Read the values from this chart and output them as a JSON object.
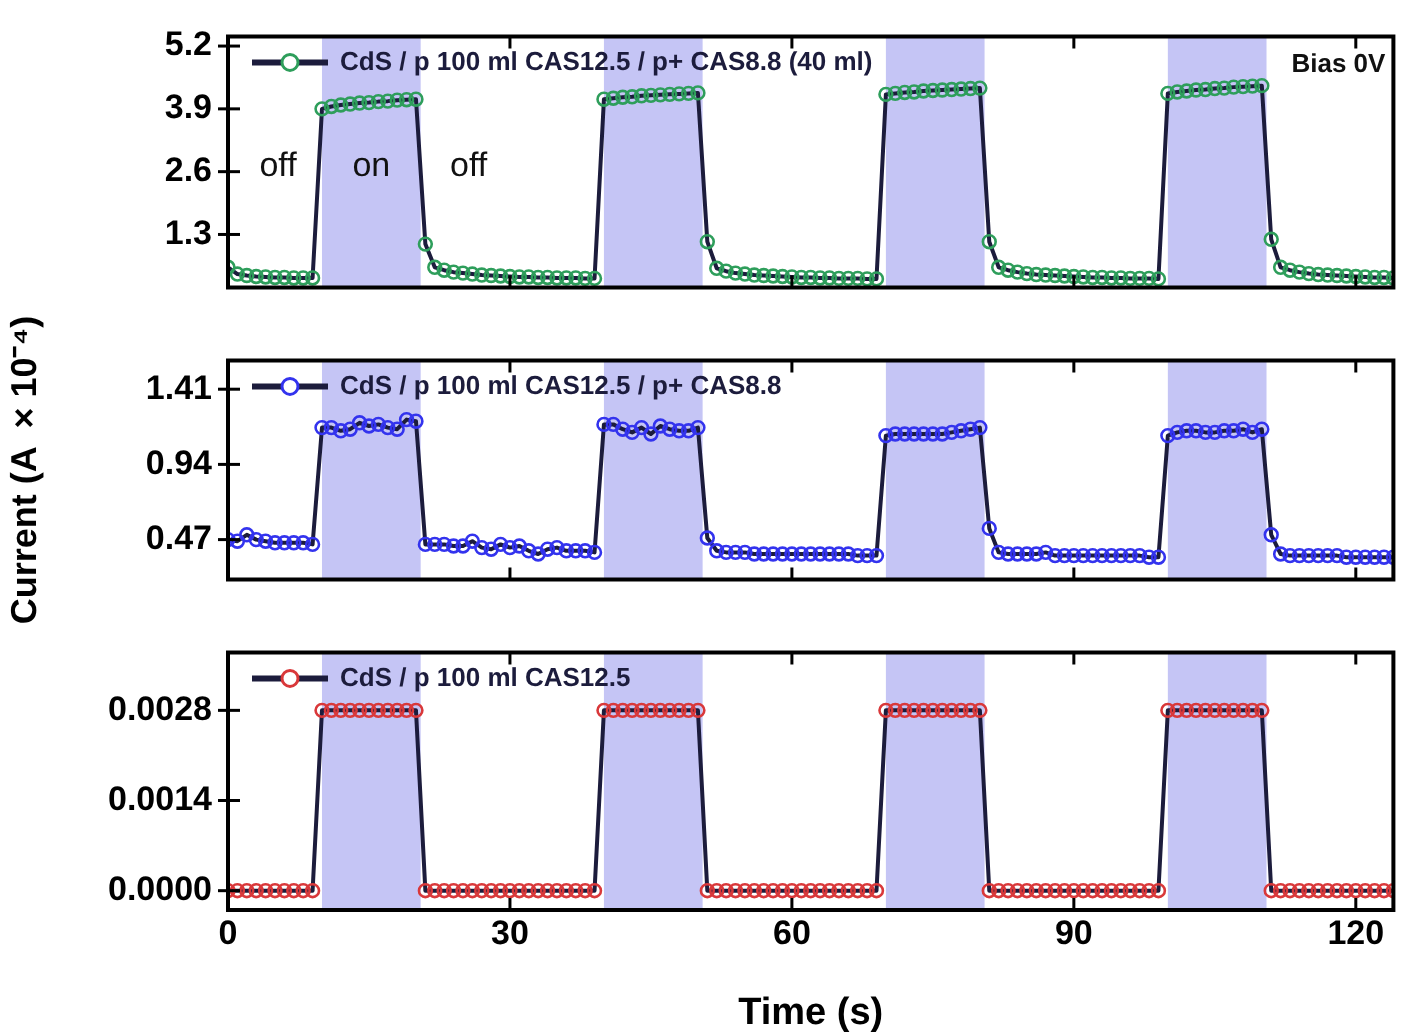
{
  "chart_data": [
    {
      "type": "line",
      "marker": "circle",
      "line_style": "solid",
      "grid": false,
      "legend": "top left",
      "tick_labels": "y",
      "xlim": [
        0,
        124
      ],
      "xticks": [
        0,
        30,
        60,
        90,
        120
      ],
      "ylim": [
        0.2,
        5.4
      ],
      "yticks": [
        1.3,
        2.6,
        3.9,
        5.2
      ],
      "bands": [
        {
          "axis": "x",
          "from": 10,
          "to": 20.5,
          "color": "#c5c5f5"
        },
        {
          "axis": "x",
          "from": 40,
          "to": 50.5,
          "color": "#c5c5f5"
        },
        {
          "axis": "x",
          "from": 70,
          "to": 80.5,
          "color": "#c5c5f5"
        },
        {
          "axis": "x",
          "from": 100,
          "to": 110.5,
          "color": "#c5c5f5"
        }
      ],
      "annotations": [
        "off",
        "on",
        "off",
        "Bias 0V"
      ],
      "x": [
        0,
        1,
        2,
        3,
        4,
        5,
        6,
        7,
        8,
        9,
        10,
        11,
        12,
        13,
        14,
        15,
        16,
        17,
        18,
        19,
        20,
        21,
        22,
        23,
        24,
        25,
        26,
        27,
        28,
        29,
        30,
        31,
        32,
        33,
        34,
        35,
        36,
        37,
        38,
        39,
        40,
        41,
        42,
        43,
        44,
        45,
        46,
        47,
        48,
        49,
        50,
        51,
        52,
        53,
        54,
        55,
        56,
        57,
        58,
        59,
        60,
        61,
        62,
        63,
        64,
        65,
        66,
        67,
        68,
        69,
        70,
        71,
        72,
        73,
        74,
        75,
        76,
        77,
        78,
        79,
        80,
        81,
        82,
        83,
        84,
        85,
        86,
        87,
        88,
        89,
        90,
        91,
        92,
        93,
        94,
        95,
        96,
        97,
        98,
        99,
        100,
        101,
        102,
        103,
        104,
        105,
        106,
        107,
        108,
        109,
        110,
        111,
        112,
        113,
        114,
        115,
        116,
        117,
        118,
        119,
        120,
        121,
        122,
        123,
        124
      ],
      "series": [
        {
          "name": "CdS / p 100 ml CAS12.5 / p+ CAS8.8 (40 ml)",
          "color": "#2e9e5b",
          "values": [
            0.62,
            0.48,
            0.45,
            0.43,
            0.42,
            0.41,
            0.41,
            0.4,
            0.4,
            0.4,
            3.9,
            3.95,
            3.98,
            4.0,
            4.02,
            4.03,
            4.05,
            4.06,
            4.08,
            4.09,
            4.1,
            1.1,
            0.62,
            0.56,
            0.52,
            0.5,
            0.48,
            0.46,
            0.45,
            0.44,
            0.43,
            0.42,
            0.42,
            0.41,
            0.41,
            0.4,
            0.4,
            0.4,
            0.39,
            0.39,
            4.1,
            4.12,
            4.14,
            4.15,
            4.17,
            4.18,
            4.19,
            4.2,
            4.21,
            4.22,
            4.23,
            1.15,
            0.6,
            0.54,
            0.5,
            0.48,
            0.46,
            0.45,
            0.44,
            0.43,
            0.42,
            0.41,
            0.41,
            0.4,
            0.4,
            0.39,
            0.39,
            0.39,
            0.38,
            0.38,
            4.2,
            4.22,
            4.24,
            4.25,
            4.27,
            4.28,
            4.29,
            4.3,
            4.31,
            4.32,
            4.33,
            1.15,
            0.62,
            0.56,
            0.52,
            0.49,
            0.47,
            0.46,
            0.45,
            0.44,
            0.43,
            0.42,
            0.41,
            0.41,
            0.4,
            0.4,
            0.39,
            0.39,
            0.39,
            0.38,
            4.22,
            4.25,
            4.27,
            4.29,
            4.3,
            4.32,
            4.33,
            4.35,
            4.36,
            4.37,
            4.38,
            1.2,
            0.62,
            0.56,
            0.52,
            0.49,
            0.47,
            0.46,
            0.45,
            0.44,
            0.43,
            0.42,
            0.41,
            0.41,
            0.4
          ]
        }
      ]
    },
    {
      "type": "line",
      "marker": "circle",
      "line_style": "solid",
      "grid": false,
      "legend": "top left",
      "tick_labels": "y",
      "ylabel": "Current (A ×10⁻⁴)",
      "xlim": [
        0,
        124
      ],
      "xticks": [
        0,
        30,
        60,
        90,
        120
      ],
      "ylim": [
        0.22,
        1.59
      ],
      "yticks": [
        0.47,
        0.94,
        1.41
      ],
      "bands": [
        {
          "axis": "x",
          "from": 10,
          "to": 20.5,
          "color": "#c5c5f5"
        },
        {
          "axis": "x",
          "from": 40,
          "to": 50.5,
          "color": "#c5c5f5"
        },
        {
          "axis": "x",
          "from": 70,
          "to": 80.5,
          "color": "#c5c5f5"
        },
        {
          "axis": "x",
          "from": 100,
          "to": 110.5,
          "color": "#c5c5f5"
        }
      ],
      "x": [
        0,
        1,
        2,
        3,
        4,
        5,
        6,
        7,
        8,
        9,
        10,
        11,
        12,
        13,
        14,
        15,
        16,
        17,
        18,
        19,
        20,
        21,
        22,
        23,
        24,
        25,
        26,
        27,
        28,
        29,
        30,
        31,
        32,
        33,
        34,
        35,
        36,
        37,
        38,
        39,
        40,
        41,
        42,
        43,
        44,
        45,
        46,
        47,
        48,
        49,
        50,
        51,
        52,
        53,
        54,
        55,
        56,
        57,
        58,
        59,
        60,
        61,
        62,
        63,
        64,
        65,
        66,
        67,
        68,
        69,
        70,
        71,
        72,
        73,
        74,
        75,
        76,
        77,
        78,
        79,
        80,
        81,
        82,
        83,
        84,
        85,
        86,
        87,
        88,
        89,
        90,
        91,
        92,
        93,
        94,
        95,
        96,
        97,
        98,
        99,
        100,
        101,
        102,
        103,
        104,
        105,
        106,
        107,
        108,
        109,
        110,
        111,
        112,
        113,
        114,
        115,
        116,
        117,
        118,
        119,
        120,
        121,
        122,
        123,
        124
      ],
      "series": [
        {
          "name": "CdS / p 100 ml CAS12.5 / p+ CAS8.8",
          "color": "#3333ee",
          "values": [
            0.47,
            0.46,
            0.5,
            0.47,
            0.46,
            0.45,
            0.45,
            0.45,
            0.45,
            0.44,
            1.17,
            1.17,
            1.15,
            1.16,
            1.2,
            1.18,
            1.19,
            1.17,
            1.16,
            1.22,
            1.21,
            0.44,
            0.44,
            0.44,
            0.43,
            0.43,
            0.46,
            0.42,
            0.41,
            0.44,
            0.42,
            0.43,
            0.4,
            0.38,
            0.41,
            0.42,
            0.4,
            0.4,
            0.4,
            0.39,
            1.19,
            1.19,
            1.16,
            1.14,
            1.17,
            1.13,
            1.18,
            1.16,
            1.15,
            1.15,
            1.17,
            0.48,
            0.4,
            0.39,
            0.39,
            0.39,
            0.38,
            0.38,
            0.38,
            0.38,
            0.38,
            0.38,
            0.38,
            0.38,
            0.38,
            0.38,
            0.38,
            0.37,
            0.37,
            0.37,
            1.12,
            1.13,
            1.13,
            1.13,
            1.13,
            1.13,
            1.13,
            1.14,
            1.15,
            1.16,
            1.17,
            0.54,
            0.39,
            0.38,
            0.38,
            0.38,
            0.38,
            0.39,
            0.37,
            0.37,
            0.37,
            0.37,
            0.37,
            0.37,
            0.37,
            0.37,
            0.37,
            0.37,
            0.36,
            0.36,
            1.12,
            1.14,
            1.15,
            1.15,
            1.14,
            1.14,
            1.15,
            1.15,
            1.16,
            1.14,
            1.16,
            0.5,
            0.38,
            0.37,
            0.37,
            0.37,
            0.37,
            0.37,
            0.37,
            0.36,
            0.36,
            0.36,
            0.36,
            0.36,
            0.36
          ]
        }
      ]
    },
    {
      "type": "line",
      "marker": "circle",
      "line_style": "solid",
      "grid": false,
      "legend": "top left",
      "xlabel": "Time (s)",
      "xlim": [
        0,
        124
      ],
      "xticks": [
        0,
        30,
        60,
        90,
        120
      ],
      "ylim": [
        -0.0003,
        0.0037
      ],
      "yticks": [
        {
          "value": 0,
          "label": "0.0000"
        },
        0.0014,
        0.0028
      ],
      "bands": [
        {
          "axis": "x",
          "from": 10,
          "to": 20.5,
          "color": "#c5c5f5"
        },
        {
          "axis": "x",
          "from": 40,
          "to": 50.5,
          "color": "#c5c5f5"
        },
        {
          "axis": "x",
          "from": 70,
          "to": 80.5,
          "color": "#c5c5f5"
        },
        {
          "axis": "x",
          "from": 100,
          "to": 110.5,
          "color": "#c5c5f5"
        }
      ],
      "x": [
        0,
        1,
        2,
        3,
        4,
        5,
        6,
        7,
        8,
        9,
        10,
        11,
        12,
        13,
        14,
        15,
        16,
        17,
        18,
        19,
        20,
        21,
        22,
        23,
        24,
        25,
        26,
        27,
        28,
        29,
        30,
        31,
        32,
        33,
        34,
        35,
        36,
        37,
        38,
        39,
        40,
        41,
        42,
        43,
        44,
        45,
        46,
        47,
        48,
        49,
        50,
        51,
        52,
        53,
        54,
        55,
        56,
        57,
        58,
        59,
        60,
        61,
        62,
        63,
        64,
        65,
        66,
        67,
        68,
        69,
        70,
        71,
        72,
        73,
        74,
        75,
        76,
        77,
        78,
        79,
        80,
        81,
        82,
        83,
        84,
        85,
        86,
        87,
        88,
        89,
        90,
        91,
        92,
        93,
        94,
        95,
        96,
        97,
        98,
        99,
        100,
        101,
        102,
        103,
        104,
        105,
        106,
        107,
        108,
        109,
        110,
        111,
        112,
        113,
        114,
        115,
        116,
        117,
        118,
        119,
        120,
        121,
        122,
        123,
        124
      ],
      "series": [
        {
          "name": "CdS / p 100 ml CAS12.5",
          "color": "#d9383a",
          "values": [
            0,
            0,
            0,
            0,
            0,
            0,
            0,
            0,
            0,
            0,
            0.0028,
            0.0028,
            0.0028,
            0.0028,
            0.0028,
            0.0028,
            0.0028,
            0.0028,
            0.0028,
            0.0028,
            0.0028,
            0,
            0,
            0,
            0,
            0,
            0,
            0,
            0,
            0,
            0,
            0,
            0,
            0,
            0,
            0,
            0,
            0,
            0,
            0,
            0.0028,
            0.0028,
            0.0028,
            0.0028,
            0.0028,
            0.0028,
            0.0028,
            0.0028,
            0.0028,
            0.0028,
            0.0028,
            0,
            0,
            0,
            0,
            0,
            0,
            0,
            0,
            0,
            0,
            0,
            0,
            0,
            0,
            0,
            0,
            0,
            0,
            0,
            0.0028,
            0.0028,
            0.0028,
            0.0028,
            0.0028,
            0.0028,
            0.0028,
            0.0028,
            0.0028,
            0.0028,
            0.0028,
            0,
            0,
            0,
            0,
            0,
            0,
            0,
            0,
            0,
            0,
            0,
            0,
            0,
            0,
            0,
            0,
            0,
            0,
            0,
            0.0028,
            0.0028,
            0.0028,
            0.0028,
            0.0028,
            0.0028,
            0.0028,
            0.0028,
            0.0028,
            0.0028,
            0.0028,
            0,
            0,
            0,
            0,
            0,
            0,
            0,
            0,
            0,
            0,
            0,
            0,
            0,
            0
          ]
        }
      ]
    }
  ]
}
